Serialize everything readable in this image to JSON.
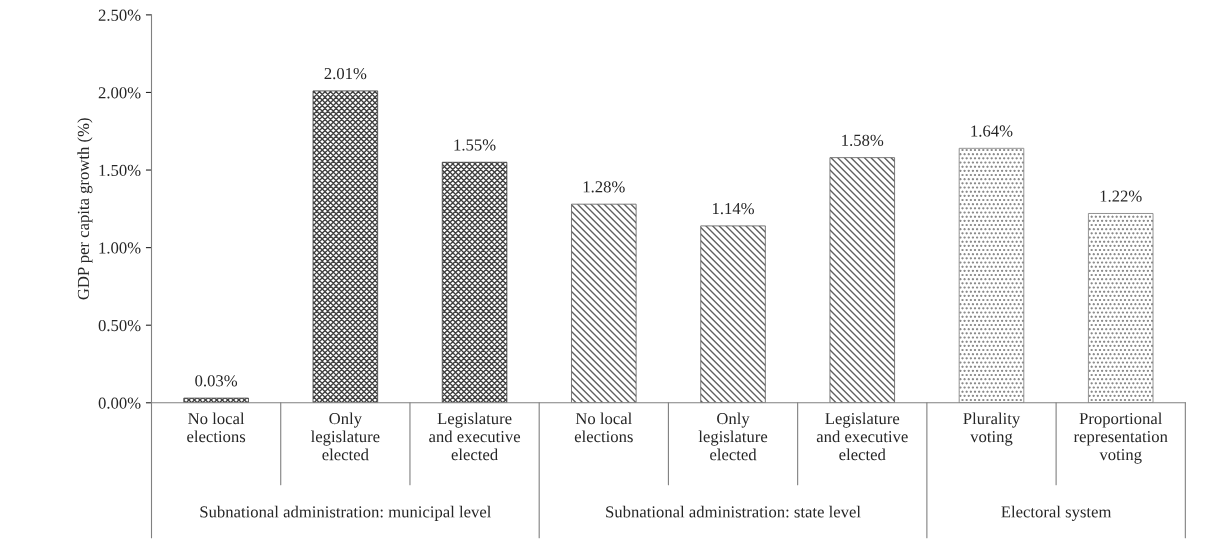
{
  "chart_data": {
    "type": "bar",
    "ylabel": "GDP per capita growth (%)",
    "categories": [
      "No local\nelections",
      "Only\nlegislature\nelected",
      "Legislature\nand executive\nelected",
      "No local\nelections",
      "Only\nlegislature\nelected",
      "Legislature\nand executive\nelected",
      "Plurality\nvoting",
      "Proportional\nrepresentation\nvoting"
    ],
    "values": [
      0.03,
      2.01,
      1.55,
      1.28,
      1.14,
      1.58,
      1.64,
      1.22
    ],
    "value_labels": [
      "0.03%",
      "2.01%",
      "1.55%",
      "1.28%",
      "1.14%",
      "1.58%",
      "1.64%",
      "1.22%"
    ],
    "colors": [
      "#404040",
      "#404040",
      "#404040",
      "#606060",
      "#606060",
      "#606060",
      "#808080",
      "#808080"
    ],
    "annotations": [
      "Subnational administration: municipal level",
      "Subnational administration: state level",
      "Electoral system"
    ],
    "ylim": [
      0,
      2.5
    ],
    "yticks": [
      {
        "value": 0,
        "label": "0.00%"
      },
      {
        "value": 0.5,
        "label": "0.50%"
      },
      {
        "value": 1.0,
        "label": "1.00%"
      },
      {
        "value": 1.5,
        "label": "1.50%"
      },
      {
        "value": 2.0,
        "label": "2.00%"
      },
      {
        "value": 2.5,
        "label": "2.50%"
      }
    ],
    "grid": false,
    "legend": false
  }
}
